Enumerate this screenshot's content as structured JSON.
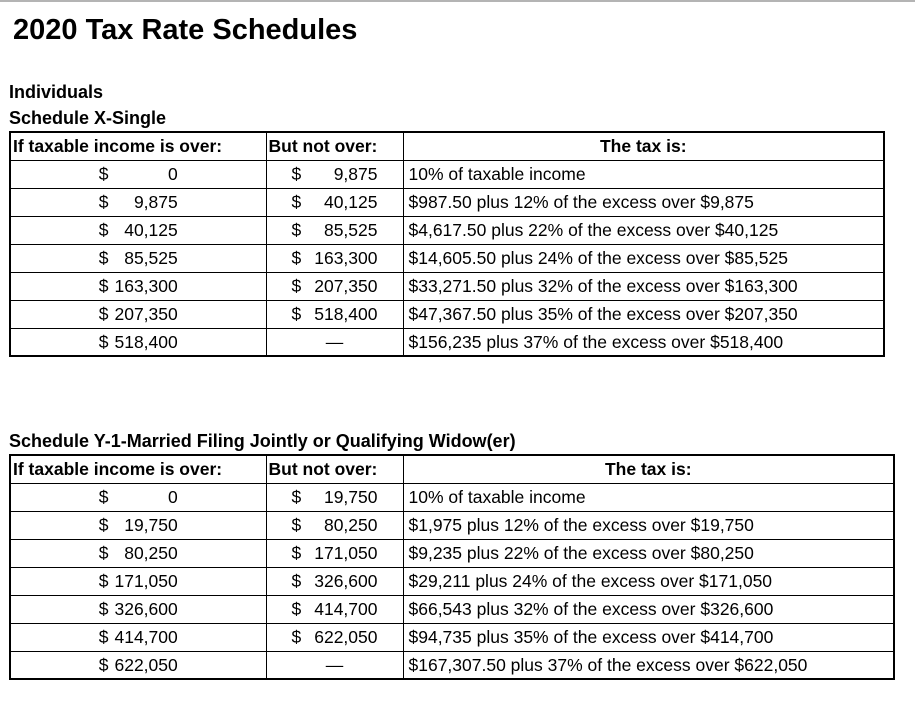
{
  "page": {
    "title": "2020 Tax Rate Schedules"
  },
  "colors": {
    "text": "#000000",
    "table_border": "#000000",
    "background": "#ffffff",
    "top_rule": "#b4b4b4"
  },
  "schedules": [
    {
      "headings": [
        "Individuals",
        "Schedule X-Single"
      ],
      "columns": [
        "If taxable income is over:",
        "But not over:",
        "The tax is:"
      ],
      "rows": [
        {
          "over": {
            "sym": "$",
            "val": "0"
          },
          "not_over": {
            "sym": "$",
            "val": "9,875"
          },
          "tax": "10% of taxable income"
        },
        {
          "over": {
            "sym": "$",
            "val": "9,875"
          },
          "not_over": {
            "sym": "$",
            "val": "40,125"
          },
          "tax": "$987.50 plus 12% of the excess over $9,875"
        },
        {
          "over": {
            "sym": "$",
            "val": "40,125"
          },
          "not_over": {
            "sym": "$",
            "val": "85,525"
          },
          "tax": "$4,617.50 plus 22% of the excess over $40,125"
        },
        {
          "over": {
            "sym": "$",
            "val": "85,525"
          },
          "not_over": {
            "sym": "$",
            "val": "163,300"
          },
          "tax": "$14,605.50 plus 24% of the excess over $85,525"
        },
        {
          "over": {
            "sym": "$",
            "val": "163,300"
          },
          "not_over": {
            "sym": "$",
            "val": "207,350"
          },
          "tax": "$33,271.50 plus 32% of the excess over $163,300"
        },
        {
          "over": {
            "sym": "$",
            "val": "207,350"
          },
          "not_over": {
            "sym": "$",
            "val": "518,400"
          },
          "tax": "$47,367.50 plus 35% of the excess over $207,350"
        },
        {
          "over": {
            "sym": "$",
            "val": "518,400"
          },
          "not_over": {
            "sym": "",
            "val": "—"
          },
          "tax": "$156,235 plus 37% of the excess over $518,400"
        }
      ]
    },
    {
      "headings": [
        "Schedule Y-1-Married Filing Jointly or Qualifying Widow(er)"
      ],
      "columns": [
        "If taxable income is over:",
        "But not over:",
        "The tax is:"
      ],
      "rows": [
        {
          "over": {
            "sym": "$",
            "val": "0"
          },
          "not_over": {
            "sym": "$",
            "val": "19,750"
          },
          "tax": "10% of taxable income"
        },
        {
          "over": {
            "sym": "$",
            "val": "19,750"
          },
          "not_over": {
            "sym": "$",
            "val": "80,250"
          },
          "tax": "$1,975 plus 12% of the excess over $19,750"
        },
        {
          "over": {
            "sym": "$",
            "val": "80,250"
          },
          "not_over": {
            "sym": "$",
            "val": "171,050"
          },
          "tax": "$9,235 plus 22% of the excess over $80,250"
        },
        {
          "over": {
            "sym": "$",
            "val": "171,050"
          },
          "not_over": {
            "sym": "$",
            "val": "326,600"
          },
          "tax": "$29,211 plus 24% of the excess over $171,050"
        },
        {
          "over": {
            "sym": "$",
            "val": "326,600"
          },
          "not_over": {
            "sym": "$",
            "val": "414,700"
          },
          "tax": "$66,543 plus 32% of the excess over $326,600"
        },
        {
          "over": {
            "sym": "$",
            "val": "414,700"
          },
          "not_over": {
            "sym": "$",
            "val": "622,050"
          },
          "tax": "$94,735 plus 35% of the excess over $414,700"
        },
        {
          "over": {
            "sym": "$",
            "val": "622,050"
          },
          "not_over": {
            "sym": "",
            "val": "—"
          },
          "tax": "$167,307.50 plus 37% of the excess over $622,050"
        }
      ]
    }
  ]
}
